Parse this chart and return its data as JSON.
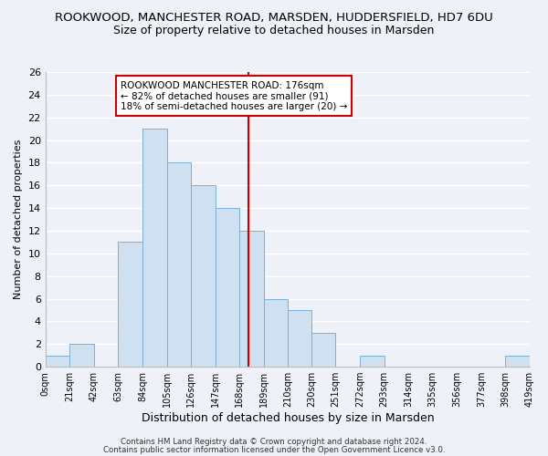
{
  "title": "ROOKWOOD, MANCHESTER ROAD, MARSDEN, HUDDERSFIELD, HD7 6DU",
  "subtitle": "Size of property relative to detached houses in Marsden",
  "xlabel": "Distribution of detached houses by size in Marsden",
  "ylabel": "Number of detached properties",
  "bar_color": "#cfe0f0",
  "bar_edge_color": "#7ab0d4",
  "vline_x": 176,
  "vline_color": "#cc0000",
  "bin_edges": [
    0,
    21,
    42,
    63,
    84,
    105,
    126,
    147,
    168,
    189,
    210,
    230,
    251,
    272,
    293,
    314,
    335,
    356,
    377,
    398,
    419
  ],
  "counts": [
    1,
    2,
    0,
    11,
    21,
    18,
    16,
    14,
    12,
    6,
    5,
    3,
    0,
    1,
    0,
    0,
    0,
    0,
    0,
    1
  ],
  "tick_labels": [
    "0sqm",
    "21sqm",
    "42sqm",
    "63sqm",
    "84sqm",
    "105sqm",
    "126sqm",
    "147sqm",
    "168sqm",
    "189sqm",
    "210sqm",
    "230sqm",
    "251sqm",
    "272sqm",
    "293sqm",
    "314sqm",
    "335sqm",
    "356sqm",
    "377sqm",
    "398sqm",
    "419sqm"
  ],
  "ylim": [
    0,
    26
  ],
  "yticks": [
    0,
    2,
    4,
    6,
    8,
    10,
    12,
    14,
    16,
    18,
    20,
    22,
    24,
    26
  ],
  "annotation_title": "ROOKWOOD MANCHESTER ROAD: 176sqm",
  "annotation_line1": "← 82% of detached houses are smaller (91)",
  "annotation_line2": "18% of semi-detached houses are larger (20) →",
  "footer1": "Contains HM Land Registry data © Crown copyright and database right 2024.",
  "footer2": "Contains public sector information licensed under the Open Government Licence v3.0.",
  "background_color": "#eef2f8",
  "grid_color": "#ffffff",
  "title_fontsize": 9.5,
  "subtitle_fontsize": 9
}
